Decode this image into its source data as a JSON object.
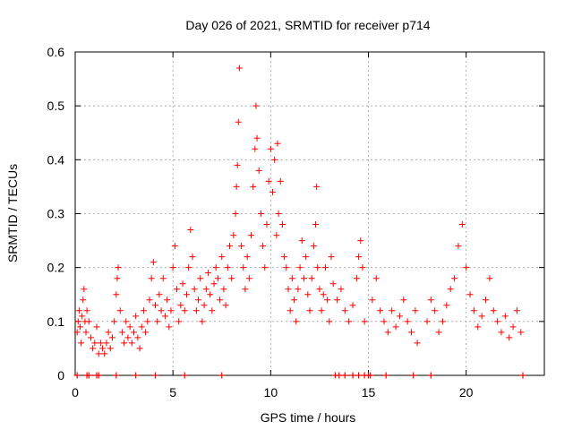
{
  "chart_data": {
    "type": "scatter",
    "title": "Day 026 of 2021, SRMTID for receiver p714",
    "xlabel": "GPS time / hours",
    "ylabel": "SRMTID / TECUs",
    "xlim": [
      0,
      24
    ],
    "ylim": [
      0,
      0.6
    ],
    "x_ticks": [
      0,
      5,
      10,
      15,
      20
    ],
    "x_tick_labels": [
      "0",
      "5",
      "10",
      "15",
      "20"
    ],
    "y_ticks": [
      0,
      0.1,
      0.2,
      0.3,
      0.4,
      0.5,
      0.6
    ],
    "y_tick_labels": [
      "0",
      "0.1",
      "0.2",
      "0.3",
      "0.4",
      "0.5",
      "0.6"
    ],
    "grid": true,
    "marker": "+",
    "series_color": "#ff0000",
    "series": [
      {
        "name": "SRMTID",
        "points": [
          [
            0.1,
            0.08
          ],
          [
            0.15,
            0.1
          ],
          [
            0.2,
            0.12
          ],
          [
            0.25,
            0.09
          ],
          [
            0.3,
            0.06
          ],
          [
            0.35,
            0.11
          ],
          [
            0.4,
            0.14
          ],
          [
            0.45,
            0.16
          ],
          [
            0.5,
            0.1
          ],
          [
            0.55,
            0.08
          ],
          [
            0.6,
            0.12
          ],
          [
            0.7,
            0.1
          ],
          [
            0.8,
            0.07
          ],
          [
            0.9,
            0.05
          ],
          [
            1.0,
            0.06
          ],
          [
            1.1,
            0.09
          ],
          [
            1.2,
            0.04
          ],
          [
            1.3,
            0.06
          ],
          [
            1.4,
            0.05
          ],
          [
            1.5,
            0.04
          ],
          [
            1.6,
            0.06
          ],
          [
            1.7,
            0.08
          ],
          [
            1.8,
            0.05
          ],
          [
            1.9,
            0.07
          ],
          [
            2.0,
            0.1
          ],
          [
            2.1,
            0.15
          ],
          [
            2.15,
            0.18
          ],
          [
            2.2,
            0.2
          ],
          [
            2.3,
            0.12
          ],
          [
            2.4,
            0.08
          ],
          [
            2.5,
            0.06
          ],
          [
            2.6,
            0.1
          ],
          [
            2.7,
            0.07
          ],
          [
            2.8,
            0.09
          ],
          [
            2.9,
            0.06
          ],
          [
            3.0,
            0.08
          ],
          [
            3.1,
            0.11
          ],
          [
            3.2,
            0.07
          ],
          [
            3.3,
            0.05
          ],
          [
            3.4,
            0.09
          ],
          [
            3.5,
            0.12
          ],
          [
            3.6,
            0.08
          ],
          [
            3.7,
            0.1
          ],
          [
            3.8,
            0.14
          ],
          [
            3.9,
            0.18
          ],
          [
            4.0,
            0.21
          ],
          [
            4.1,
            0.13
          ],
          [
            4.2,
            0.1
          ],
          [
            4.3,
            0.15
          ],
          [
            4.4,
            0.12
          ],
          [
            4.5,
            0.18
          ],
          [
            4.6,
            0.11
          ],
          [
            4.7,
            0.14
          ],
          [
            4.8,
            0.09
          ],
          [
            4.9,
            0.12
          ],
          [
            5.0,
            0.2
          ],
          [
            5.1,
            0.24
          ],
          [
            5.2,
            0.16
          ],
          [
            5.3,
            0.1
          ],
          [
            5.4,
            0.13
          ],
          [
            5.5,
            0.17
          ],
          [
            5.6,
            0.12
          ],
          [
            5.7,
            0.15
          ],
          [
            5.8,
            0.2
          ],
          [
            5.9,
            0.27
          ],
          [
            6.0,
            0.22
          ],
          [
            6.1,
            0.16
          ],
          [
            6.2,
            0.12
          ],
          [
            6.3,
            0.14
          ],
          [
            6.4,
            0.18
          ],
          [
            6.5,
            0.1
          ],
          [
            6.6,
            0.13
          ],
          [
            6.7,
            0.16
          ],
          [
            6.8,
            0.19
          ],
          [
            6.9,
            0.15
          ],
          [
            7.0,
            0.12
          ],
          [
            7.1,
            0.17
          ],
          [
            7.2,
            0.2
          ],
          [
            7.3,
            0.18
          ],
          [
            7.4,
            0.14
          ],
          [
            7.5,
            0.22
          ],
          [
            7.6,
            0.16
          ],
          [
            7.7,
            0.13
          ],
          [
            7.8,
            0.2
          ],
          [
            7.9,
            0.24
          ],
          [
            8.0,
            0.18
          ],
          [
            8.1,
            0.26
          ],
          [
            8.2,
            0.3
          ],
          [
            8.25,
            0.35
          ],
          [
            8.3,
            0.39
          ],
          [
            8.35,
            0.47
          ],
          [
            8.4,
            0.57
          ],
          [
            8.5,
            0.24
          ],
          [
            8.6,
            0.2
          ],
          [
            8.7,
            0.16
          ],
          [
            8.8,
            0.22
          ],
          [
            8.9,
            0.18
          ],
          [
            9.0,
            0.26
          ],
          [
            9.1,
            0.35
          ],
          [
            9.2,
            0.42
          ],
          [
            9.25,
            0.5
          ],
          [
            9.3,
            0.44
          ],
          [
            9.4,
            0.38
          ],
          [
            9.5,
            0.3
          ],
          [
            9.6,
            0.24
          ],
          [
            9.7,
            0.2
          ],
          [
            9.8,
            0.28
          ],
          [
            9.9,
            0.36
          ],
          [
            10.0,
            0.42
          ],
          [
            10.1,
            0.34
          ],
          [
            10.2,
            0.4
          ],
          [
            10.3,
            0.26
          ],
          [
            10.35,
            0.43
          ],
          [
            10.4,
            0.3
          ],
          [
            10.5,
            0.36
          ],
          [
            10.6,
            0.28
          ],
          [
            10.7,
            0.22
          ],
          [
            10.8,
            0.2
          ],
          [
            10.9,
            0.16
          ],
          [
            11.0,
            0.12
          ],
          [
            11.1,
            0.18
          ],
          [
            11.2,
            0.14
          ],
          [
            11.3,
            0.1
          ],
          [
            11.4,
            0.16
          ],
          [
            11.5,
            0.2
          ],
          [
            11.6,
            0.25
          ],
          [
            11.7,
            0.18
          ],
          [
            11.8,
            0.22
          ],
          [
            11.9,
            0.15
          ],
          [
            12.0,
            0.12
          ],
          [
            12.1,
            0.18
          ],
          [
            12.2,
            0.24
          ],
          [
            12.3,
            0.28
          ],
          [
            12.35,
            0.35
          ],
          [
            12.4,
            0.2
          ],
          [
            12.5,
            0.16
          ],
          [
            12.6,
            0.12
          ],
          [
            12.7,
            0.15
          ],
          [
            12.8,
            0.2
          ],
          [
            12.9,
            0.14
          ],
          [
            13.0,
            0.1
          ],
          [
            13.1,
            0.22
          ],
          [
            13.2,
            0.17
          ],
          [
            13.4,
            0.14
          ],
          [
            13.6,
            0.16
          ],
          [
            13.8,
            0.12
          ],
          [
            14.0,
            0.1
          ],
          [
            14.2,
            0.13
          ],
          [
            14.4,
            0.18
          ],
          [
            14.5,
            0.22
          ],
          [
            14.6,
            0.25
          ],
          [
            14.7,
            0.2
          ],
          [
            14.8,
            0.1
          ],
          [
            15.2,
            0.14
          ],
          [
            15.4,
            0.18
          ],
          [
            15.6,
            0.12
          ],
          [
            15.8,
            0.1
          ],
          [
            16.0,
            0.08
          ],
          [
            16.2,
            0.12
          ],
          [
            16.4,
            0.09
          ],
          [
            16.6,
            0.11
          ],
          [
            16.8,
            0.14
          ],
          [
            17.0,
            0.1
          ],
          [
            17.2,
            0.08
          ],
          [
            17.4,
            0.12
          ],
          [
            17.5,
            0.06
          ],
          [
            18.0,
            0.1
          ],
          [
            18.2,
            0.14
          ],
          [
            18.4,
            0.12
          ],
          [
            18.6,
            0.08
          ],
          [
            18.8,
            0.1
          ],
          [
            19.0,
            0.13
          ],
          [
            19.2,
            0.16
          ],
          [
            19.4,
            0.18
          ],
          [
            19.6,
            0.24
          ],
          [
            19.8,
            0.28
          ],
          [
            20.0,
            0.2
          ],
          [
            20.2,
            0.15
          ],
          [
            20.4,
            0.12
          ],
          [
            20.6,
            0.09
          ],
          [
            20.8,
            0.11
          ],
          [
            21.0,
            0.14
          ],
          [
            21.2,
            0.18
          ],
          [
            21.4,
            0.12
          ],
          [
            21.6,
            0.1
          ],
          [
            21.8,
            0.08
          ],
          [
            22.0,
            0.11
          ],
          [
            22.2,
            0.07
          ],
          [
            22.4,
            0.09
          ],
          [
            22.6,
            0.12
          ],
          [
            22.8,
            0.08
          ]
        ]
      }
    ],
    "zero_markers_x": [
      0.1,
      0.6,
      0.7,
      1.1,
      1.2,
      2.1,
      3.1,
      4.1,
      5.6,
      7.5,
      13.3,
      13.5,
      13.8,
      14.2,
      14.5,
      14.8,
      15.0,
      15.1,
      15.9,
      17.3,
      18.2,
      22.9
    ]
  }
}
